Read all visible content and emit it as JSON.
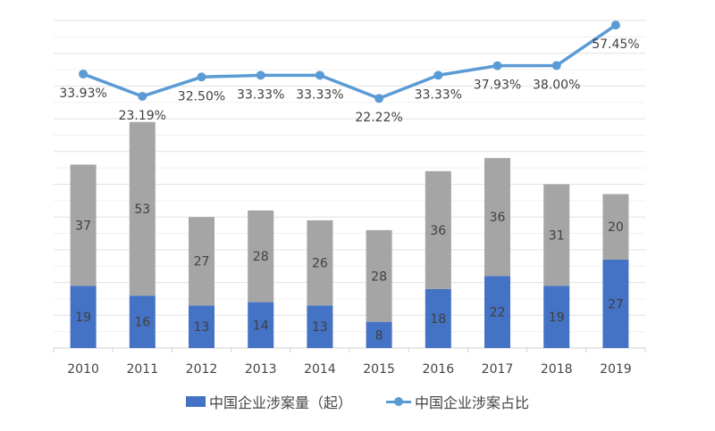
{
  "chart_data": {
    "type": "bar",
    "stacked": true,
    "categories": [
      "2010",
      "2011",
      "2012",
      "2013",
      "2014",
      "2015",
      "2016",
      "2017",
      "2018",
      "2019"
    ],
    "series": [
      {
        "name": "中国企业涉案量（起）",
        "type": "bar",
        "color": "#4472c4",
        "values": [
          19,
          16,
          13,
          14,
          13,
          8,
          18,
          22,
          19,
          27
        ]
      },
      {
        "type": "bar",
        "color": "#a5a5a5",
        "values": [
          37,
          53,
          27,
          28,
          26,
          28,
          36,
          36,
          31,
          20
        ]
      },
      {
        "name": "中国企业涉案占比",
        "type": "line",
        "color": "#5b9bd5",
        "values": [
          33.93,
          23.19,
          32.5,
          33.33,
          33.33,
          22.22,
          33.33,
          37.93,
          38.0,
          57.45
        ],
        "labels": [
          "33.93%",
          "23.19%",
          "32.50%",
          "33.33%",
          "33.33%",
          "22.22%",
          "33.33%",
          "37.93%",
          "38.00%",
          "57.45%"
        ]
      }
    ],
    "ylim": [
      0,
      100
    ],
    "y2lim": [
      0,
      70
    ],
    "y_axis_visible": false,
    "grid": true,
    "legend": "bottom"
  }
}
